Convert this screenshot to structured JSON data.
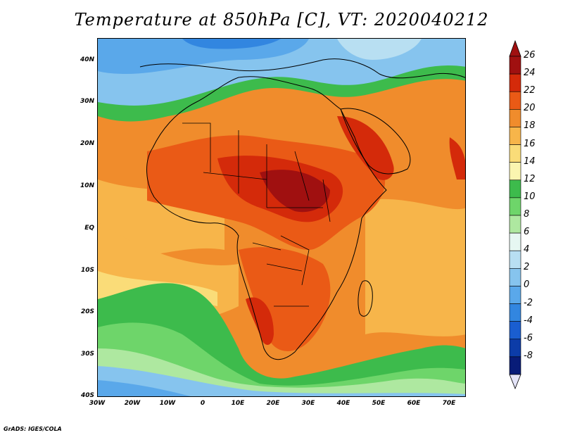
{
  "title": "Temperature at 850hPa [C], VT: 2020040212",
  "credit": "GrADS: IGES/COLA",
  "map": {
    "type": "filled-contour-map",
    "variable": "Temperature at 850hPa",
    "units": "C",
    "valid_time": "2020040212",
    "lon_range": [
      -30,
      75
    ],
    "lat_range": [
      -40,
      45
    ],
    "lat_labels": [
      "40N",
      "30N",
      "20N",
      "10N",
      "EQ",
      "10S",
      "20S",
      "30S",
      "40S"
    ],
    "lon_labels": [
      "30W",
      "20W",
      "10W",
      "0",
      "10E",
      "20E",
      "30E",
      "40E",
      "50E",
      "60E",
      "70E"
    ]
  },
  "colorbar": {
    "labels": [
      "26",
      "24",
      "22",
      "20",
      "18",
      "16",
      "14",
      "12",
      "10",
      "8",
      "6",
      "4",
      "2",
      "0",
      "-2",
      "-4",
      "-6",
      "-8"
    ],
    "colors": [
      "#a01010",
      "#d42a0a",
      "#ea5a16",
      "#f08c2c",
      "#f7b54a",
      "#fadc78",
      "#fbf5b0",
      "#3dbb4c",
      "#6ed56a",
      "#aee8a0",
      "#e6f7f2",
      "#b8dff2",
      "#86c4ee",
      "#5aa8ea",
      "#3286e0",
      "#1a5ed0",
      "#0c3ca8",
      "#081c78"
    ],
    "arrow_top_color": "#a01010",
    "arrow_bottom_color": "#e4e4f8"
  }
}
